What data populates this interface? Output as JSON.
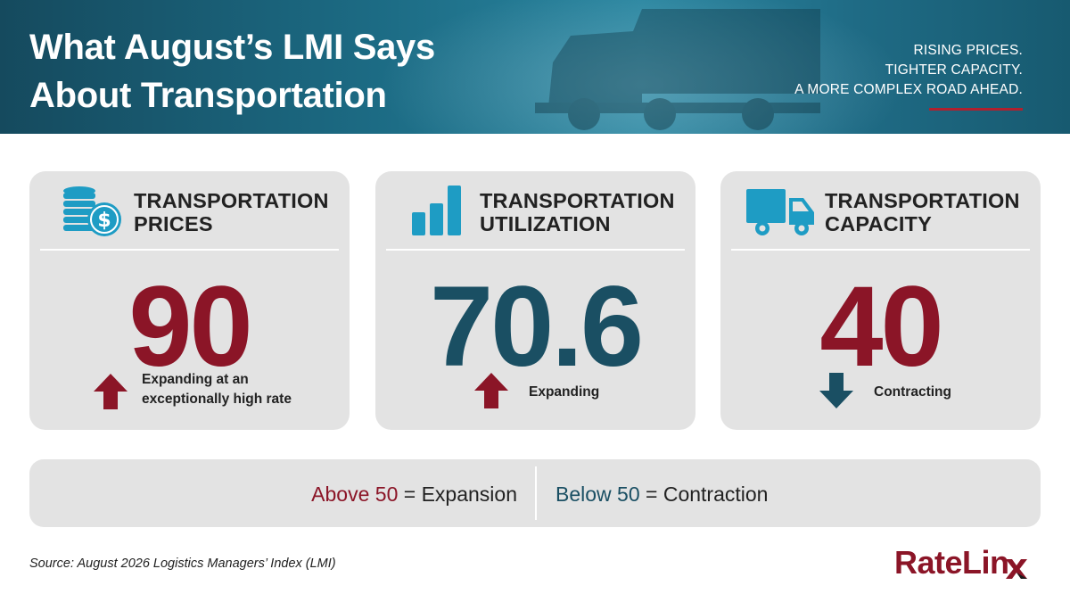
{
  "header": {
    "title_line1": "What August’s LMI Says",
    "title_line2": "About Transportation",
    "tagline": [
      "RISING PRICES.",
      "TIGHTER CAPACITY.",
      "A MORE COMPLEX ROAD AHEAD."
    ]
  },
  "cards": [
    {
      "icon": "coins-dollar-icon",
      "title_line1": "TRANSPORTATION",
      "title_line2": "PRICES",
      "value": "90",
      "trend": "up",
      "status_line1": "Expanding at an",
      "status_line2": "exceptionally high rate"
    },
    {
      "icon": "bar-chart-icon",
      "title_line1": "TRANSPORTATION",
      "title_line2": "UTILIZATION",
      "value": "70.6",
      "trend": "up",
      "status_line1": "Expanding"
    },
    {
      "icon": "truck-icon",
      "title_line1": "TRANSPORTATION",
      "title_line2": "CAPACITY",
      "value": "40",
      "trend": "down",
      "status_line1": "Contracting"
    }
  ],
  "legend": {
    "above_label": "Above 50",
    "above_meaning": "= Expansion",
    "below_label": "Below 50",
    "below_meaning": "= Contraction"
  },
  "footer": {
    "source": "Source: August 2026 Logistics Managers’ Index (LMI)",
    "logo_text": "RateLin"
  },
  "colors": {
    "accent_red": "#8b1527",
    "accent_teal": "#1a4f63",
    "icon_blue": "#1e9cc4",
    "card_bg": "#e3e3e3"
  }
}
